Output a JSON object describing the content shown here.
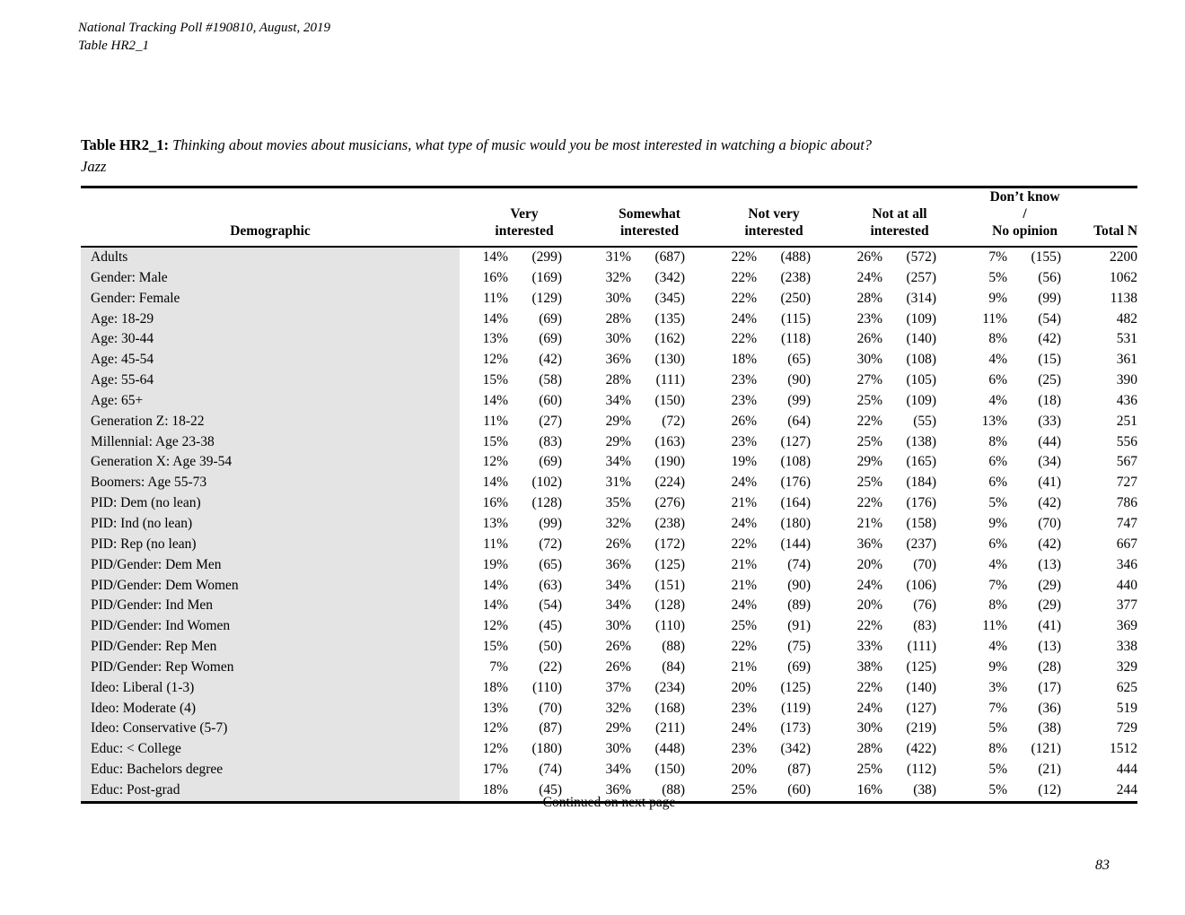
{
  "doc_header": {
    "line1": "National Tracking Poll #190810, August, 2019",
    "line2": "Table HR2_1"
  },
  "title": {
    "label": "Table HR2_1:",
    "question": "Thinking about movies about musicians, what type of music would you be most interested in watching a biopic about?",
    "subtitle": "Jazz"
  },
  "footer": {
    "continued": "Continued on next page",
    "page_number": "83"
  },
  "table": {
    "columns": [
      {
        "id": "demographic",
        "lines": [
          "Demographic"
        ],
        "span": 1,
        "kind": "demo"
      },
      {
        "id": "very-interested",
        "lines": [
          "Very interested"
        ],
        "span": 2,
        "kind": "group"
      },
      {
        "id": "somewhat-interested",
        "lines": [
          "Somewhat",
          "interested"
        ],
        "span": 2,
        "kind": "group"
      },
      {
        "id": "not-very-interested",
        "lines": [
          "Not very",
          "interested"
        ],
        "span": 2,
        "kind": "group"
      },
      {
        "id": "not-at-all-interested",
        "lines": [
          "Not at all",
          "interested"
        ],
        "span": 2,
        "kind": "group"
      },
      {
        "id": "dont-know-no-opinion",
        "lines": [
          "Don’t know /",
          "No opinion"
        ],
        "span": 2,
        "kind": "group"
      },
      {
        "id": "total-n",
        "lines": [
          "Total N"
        ],
        "span": 1,
        "kind": "total"
      }
    ],
    "rows": [
      {
        "label": "Adults",
        "cells": [
          "14%",
          "(299)",
          "31%",
          "(687)",
          "22%",
          "(488)",
          "26%",
          "(572)",
          "7%",
          "(155)",
          "2200"
        ]
      },
      {
        "label": "Gender: Male",
        "cells": [
          "16%",
          "(169)",
          "32%",
          "(342)",
          "22%",
          "(238)",
          "24%",
          "(257)",
          "5%",
          "(56)",
          "1062"
        ]
      },
      {
        "label": "Gender: Female",
        "cells": [
          "11%",
          "(129)",
          "30%",
          "(345)",
          "22%",
          "(250)",
          "28%",
          "(314)",
          "9%",
          "(99)",
          "1138"
        ]
      },
      {
        "label": "Age: 18-29",
        "cells": [
          "14%",
          "(69)",
          "28%",
          "(135)",
          "24%",
          "(115)",
          "23%",
          "(109)",
          "11%",
          "(54)",
          "482"
        ]
      },
      {
        "label": "Age: 30-44",
        "cells": [
          "13%",
          "(69)",
          "30%",
          "(162)",
          "22%",
          "(118)",
          "26%",
          "(140)",
          "8%",
          "(42)",
          "531"
        ]
      },
      {
        "label": "Age: 45-54",
        "cells": [
          "12%",
          "(42)",
          "36%",
          "(130)",
          "18%",
          "(65)",
          "30%",
          "(108)",
          "4%",
          "(15)",
          "361"
        ]
      },
      {
        "label": "Age: 55-64",
        "cells": [
          "15%",
          "(58)",
          "28%",
          "(111)",
          "23%",
          "(90)",
          "27%",
          "(105)",
          "6%",
          "(25)",
          "390"
        ]
      },
      {
        "label": "Age: 65+",
        "cells": [
          "14%",
          "(60)",
          "34%",
          "(150)",
          "23%",
          "(99)",
          "25%",
          "(109)",
          "4%",
          "(18)",
          "436"
        ]
      },
      {
        "label": "Generation Z: 18-22",
        "cells": [
          "11%",
          "(27)",
          "29%",
          "(72)",
          "26%",
          "(64)",
          "22%",
          "(55)",
          "13%",
          "(33)",
          "251"
        ]
      },
      {
        "label": "Millennial: Age 23-38",
        "cells": [
          "15%",
          "(83)",
          "29%",
          "(163)",
          "23%",
          "(127)",
          "25%",
          "(138)",
          "8%",
          "(44)",
          "556"
        ]
      },
      {
        "label": "Generation X: Age 39-54",
        "cells": [
          "12%",
          "(69)",
          "34%",
          "(190)",
          "19%",
          "(108)",
          "29%",
          "(165)",
          "6%",
          "(34)",
          "567"
        ]
      },
      {
        "label": "Boomers: Age 55-73",
        "cells": [
          "14%",
          "(102)",
          "31%",
          "(224)",
          "24%",
          "(176)",
          "25%",
          "(184)",
          "6%",
          "(41)",
          "727"
        ]
      },
      {
        "label": "PID: Dem (no lean)",
        "cells": [
          "16%",
          "(128)",
          "35%",
          "(276)",
          "21%",
          "(164)",
          "22%",
          "(176)",
          "5%",
          "(42)",
          "786"
        ]
      },
      {
        "label": "PID: Ind (no lean)",
        "cells": [
          "13%",
          "(99)",
          "32%",
          "(238)",
          "24%",
          "(180)",
          "21%",
          "(158)",
          "9%",
          "(70)",
          "747"
        ]
      },
      {
        "label": "PID: Rep (no lean)",
        "cells": [
          "11%",
          "(72)",
          "26%",
          "(172)",
          "22%",
          "(144)",
          "36%",
          "(237)",
          "6%",
          "(42)",
          "667"
        ]
      },
      {
        "label": "PID/Gender: Dem Men",
        "cells": [
          "19%",
          "(65)",
          "36%",
          "(125)",
          "21%",
          "(74)",
          "20%",
          "(70)",
          "4%",
          "(13)",
          "346"
        ]
      },
      {
        "label": "PID/Gender: Dem Women",
        "cells": [
          "14%",
          "(63)",
          "34%",
          "(151)",
          "21%",
          "(90)",
          "24%",
          "(106)",
          "7%",
          "(29)",
          "440"
        ]
      },
      {
        "label": "PID/Gender: Ind Men",
        "cells": [
          "14%",
          "(54)",
          "34%",
          "(128)",
          "24%",
          "(89)",
          "20%",
          "(76)",
          "8%",
          "(29)",
          "377"
        ]
      },
      {
        "label": "PID/Gender: Ind Women",
        "cells": [
          "12%",
          "(45)",
          "30%",
          "(110)",
          "25%",
          "(91)",
          "22%",
          "(83)",
          "11%",
          "(41)",
          "369"
        ]
      },
      {
        "label": "PID/Gender: Rep Men",
        "cells": [
          "15%",
          "(50)",
          "26%",
          "(88)",
          "22%",
          "(75)",
          "33%",
          "(111)",
          "4%",
          "(13)",
          "338"
        ]
      },
      {
        "label": "PID/Gender: Rep Women",
        "cells": [
          "7%",
          "(22)",
          "26%",
          "(84)",
          "21%",
          "(69)",
          "38%",
          "(125)",
          "9%",
          "(28)",
          "329"
        ]
      },
      {
        "label": "Ideo: Liberal (1-3)",
        "cells": [
          "18%",
          "(110)",
          "37%",
          "(234)",
          "20%",
          "(125)",
          "22%",
          "(140)",
          "3%",
          "(17)",
          "625"
        ]
      },
      {
        "label": "Ideo: Moderate (4)",
        "cells": [
          "13%",
          "(70)",
          "32%",
          "(168)",
          "23%",
          "(119)",
          "24%",
          "(127)",
          "7%",
          "(36)",
          "519"
        ]
      },
      {
        "label": "Ideo: Conservative (5-7)",
        "cells": [
          "12%",
          "(87)",
          "29%",
          "(211)",
          "24%",
          "(173)",
          "30%",
          "(219)",
          "5%",
          "(38)",
          "729"
        ]
      },
      {
        "label": "Educ: < College",
        "cells": [
          "12%",
          "(180)",
          "30%",
          "(448)",
          "23%",
          "(342)",
          "28%",
          "(422)",
          "8%",
          "(121)",
          "1512"
        ]
      },
      {
        "label": "Educ: Bachelors degree",
        "cells": [
          "17%",
          "(74)",
          "34%",
          "(150)",
          "20%",
          "(87)",
          "25%",
          "(112)",
          "5%",
          "(21)",
          "444"
        ]
      },
      {
        "label": "Educ: Post-grad",
        "cells": [
          "18%",
          "(45)",
          "36%",
          "(88)",
          "25%",
          "(60)",
          "16%",
          "(38)",
          "5%",
          "(12)",
          "244"
        ]
      }
    ]
  }
}
